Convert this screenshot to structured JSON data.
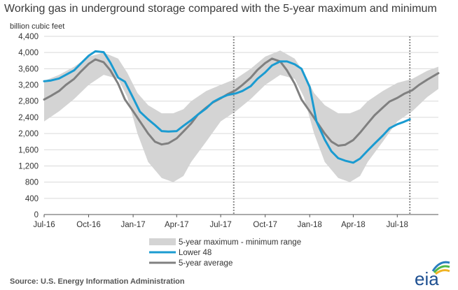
{
  "chart_data": {
    "type": "line",
    "title": "Working gas in underground  storage compared with the 5-year maximum and minimum",
    "ylabel": "billion cubic feet",
    "ylim": [
      0,
      4400
    ],
    "yticks": [
      "0",
      "400",
      "800",
      "1,200",
      "1,600",
      "2,000",
      "2,400",
      "2,800",
      "3,200",
      "3,600",
      "4,000",
      "4,400"
    ],
    "xlim": [
      "2016-07-01",
      "2018-09-24"
    ],
    "xticks": [
      {
        "date": "2016-07-01",
        "label": "Jul-16"
      },
      {
        "date": "2016-10-01",
        "label": "Oct-16"
      },
      {
        "date": "2017-01-01",
        "label": "Jan-17"
      },
      {
        "date": "2017-04-01",
        "label": "Apr-17"
      },
      {
        "date": "2017-07-01",
        "label": "Jul-17"
      },
      {
        "date": "2017-10-01",
        "label": "Oct-17"
      },
      {
        "date": "2018-01-01",
        "label": "Jan-18"
      },
      {
        "date": "2018-04-01",
        "label": "Apr-18"
      },
      {
        "date": "2018-07-01",
        "label": "Jul-18"
      }
    ],
    "vertical_markers": [
      "2017-07-28",
      "2018-07-27"
    ],
    "grid": true,
    "legend_position": "bottom",
    "range_band": {
      "name": "5-year maximum - minimum range",
      "color": "#d4d4d4",
      "x": [
        "2016-07-01",
        "2016-08-01",
        "2016-09-01",
        "2016-10-01",
        "2016-11-01",
        "2016-12-01",
        "2016-12-20",
        "2017-01-10",
        "2017-02-01",
        "2017-03-01",
        "2017-03-25",
        "2017-04-15",
        "2017-05-01",
        "2017-06-01",
        "2017-07-01",
        "2017-08-01",
        "2017-09-01",
        "2017-10-01",
        "2017-11-01",
        "2017-12-01",
        "2017-12-20",
        "2018-01-10",
        "2018-02-01",
        "2018-03-01",
        "2018-03-25",
        "2018-04-15",
        "2018-05-01",
        "2018-06-01",
        "2018-07-01",
        "2018-08-01",
        "2018-09-01",
        "2018-09-24"
      ],
      "max": [
        3300,
        3450,
        3650,
        3900,
        4000,
        3850,
        3500,
        3000,
        2700,
        2500,
        2500,
        2600,
        2800,
        3050,
        3200,
        3350,
        3600,
        3900,
        4050,
        3850,
        3500,
        3000,
        2700,
        2500,
        2500,
        2600,
        2800,
        3050,
        3250,
        3350,
        3550,
        3650
      ],
      "min": [
        2300,
        2550,
        2850,
        3200,
        3450,
        3350,
        2900,
        2000,
        1300,
        900,
        800,
        950,
        1300,
        1800,
        2300,
        2550,
        2850,
        3200,
        3450,
        3350,
        2900,
        2000,
        1300,
        900,
        800,
        950,
        1300,
        1800,
        2300,
        2550,
        2900,
        3100
      ]
    },
    "series": [
      {
        "name": "Lower 48",
        "color": "#1a9bd1",
        "x": [
          "2016-07-01",
          "2016-07-15",
          "2016-08-01",
          "2016-08-15",
          "2016-09-01",
          "2016-09-15",
          "2016-10-01",
          "2016-10-15",
          "2016-11-01",
          "2016-11-15",
          "2016-12-01",
          "2016-12-15",
          "2017-01-01",
          "2017-01-15",
          "2017-02-01",
          "2017-02-15",
          "2017-03-01",
          "2017-03-15",
          "2017-04-01",
          "2017-04-15",
          "2017-05-01",
          "2017-05-15",
          "2017-06-01",
          "2017-06-15",
          "2017-07-01",
          "2017-07-15",
          "2017-08-01",
          "2017-08-15",
          "2017-09-01",
          "2017-09-15",
          "2017-10-01",
          "2017-10-15",
          "2017-11-01",
          "2017-11-15",
          "2017-12-01",
          "2017-12-15",
          "2018-01-01",
          "2018-01-15",
          "2018-02-01",
          "2018-02-15",
          "2018-03-01",
          "2018-03-15",
          "2018-04-01",
          "2018-04-15",
          "2018-05-01",
          "2018-05-15",
          "2018-06-01",
          "2018-06-15",
          "2018-07-01",
          "2018-07-15",
          "2018-07-27"
        ],
        "values": [
          3290,
          3310,
          3360,
          3450,
          3560,
          3730,
          3920,
          4030,
          4010,
          3750,
          3380,
          3280,
          2880,
          2540,
          2350,
          2210,
          2060,
          2050,
          2060,
          2190,
          2330,
          2470,
          2620,
          2780,
          2880,
          2950,
          2990,
          3050,
          3170,
          3350,
          3510,
          3680,
          3780,
          3780,
          3710,
          3600,
          3150,
          2300,
          1850,
          1560,
          1390,
          1330,
          1280,
          1380,
          1580,
          1750,
          1950,
          2130,
          2230,
          2290,
          2350
        ]
      },
      {
        "name": "5-year average",
        "color": "#808080",
        "x": [
          "2016-07-01",
          "2016-07-15",
          "2016-08-01",
          "2016-08-15",
          "2016-09-01",
          "2016-09-15",
          "2016-10-01",
          "2016-10-15",
          "2016-11-01",
          "2016-11-15",
          "2016-12-01",
          "2016-12-15",
          "2017-01-01",
          "2017-01-15",
          "2017-02-01",
          "2017-02-15",
          "2017-03-01",
          "2017-03-15",
          "2017-04-01",
          "2017-04-15",
          "2017-05-01",
          "2017-05-15",
          "2017-06-01",
          "2017-06-15",
          "2017-07-01",
          "2017-07-15",
          "2017-08-01",
          "2017-08-15",
          "2017-09-01",
          "2017-09-15",
          "2017-10-01",
          "2017-10-15",
          "2017-11-01",
          "2017-11-15",
          "2017-12-01",
          "2017-12-15",
          "2018-01-01",
          "2018-01-15",
          "2018-02-01",
          "2018-02-15",
          "2018-03-01",
          "2018-03-15",
          "2018-04-01",
          "2018-04-15",
          "2018-05-01",
          "2018-05-15",
          "2018-06-01",
          "2018-06-15",
          "2018-07-01",
          "2018-07-15",
          "2018-08-01",
          "2018-08-15",
          "2018-09-01",
          "2018-09-24"
        ],
        "values": [
          2840,
          2930,
          3050,
          3200,
          3350,
          3530,
          3720,
          3830,
          3760,
          3560,
          3230,
          2840,
          2550,
          2300,
          2000,
          1800,
          1730,
          1760,
          1880,
          2050,
          2250,
          2470,
          2640,
          2770,
          2870,
          2970,
          3070,
          3200,
          3380,
          3570,
          3740,
          3850,
          3780,
          3560,
          3230,
          2840,
          2550,
          2300,
          2000,
          1800,
          1700,
          1720,
          1840,
          2020,
          2250,
          2450,
          2640,
          2790,
          2880,
          2980,
          3070,
          3200,
          3330,
          3490
        ]
      }
    ],
    "legend": [
      {
        "label": "5-year maximum - minimum range",
        "kind": "band",
        "color": "#d4d4d4"
      },
      {
        "label": "Lower 48",
        "kind": "line",
        "color": "#1a9bd1"
      },
      {
        "label": "5-year average",
        "kind": "line",
        "color": "#808080"
      }
    ]
  },
  "footer": {
    "source": "Source:  U.S. Energy Information Administration",
    "logo_text": "eia"
  }
}
